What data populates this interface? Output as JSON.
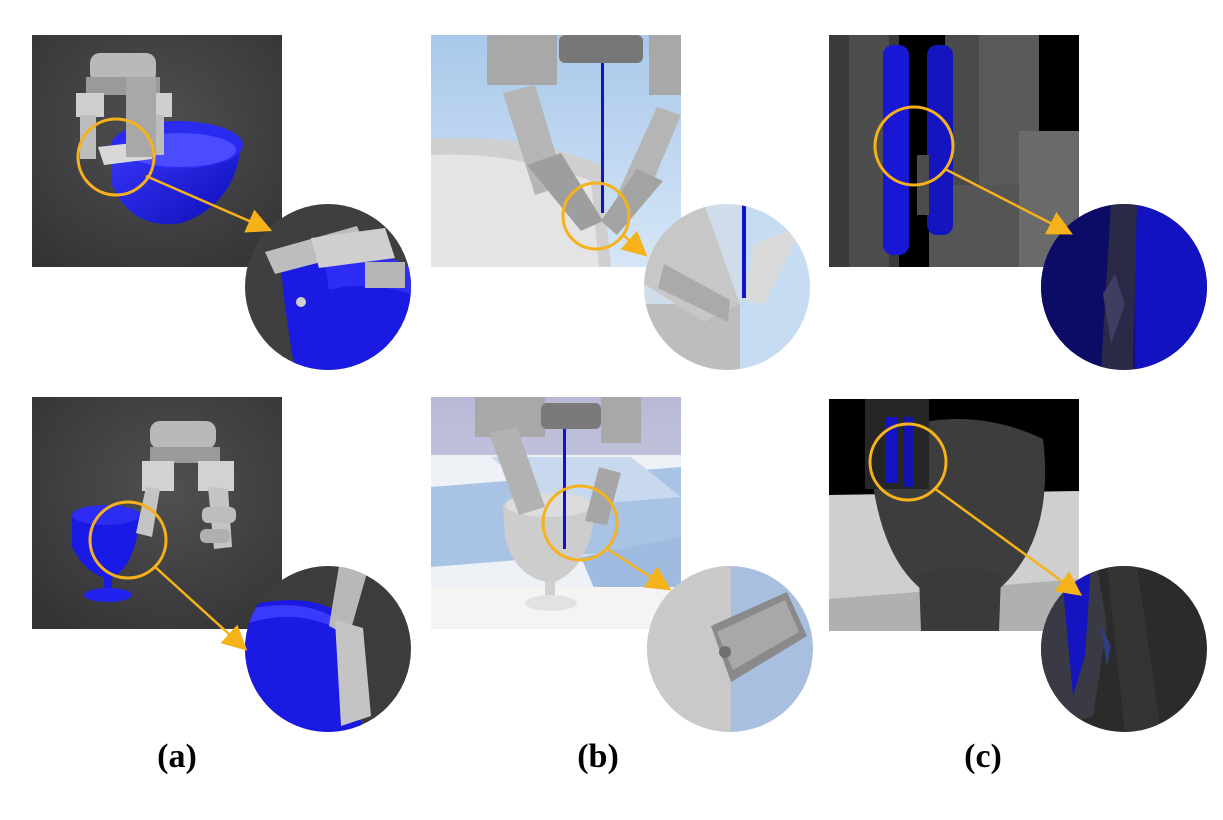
{
  "labels": {
    "a": "(a)",
    "b": "(b)",
    "c": "(c)"
  },
  "colors": {
    "highlight_ring": "#f5b21b",
    "object_blue": "#1a1adf",
    "dark_background": "#3c3c3e",
    "gripper_gray": "#c9c9c9",
    "sky_blue": "#b9d6f2"
  },
  "icons": [
    "magnifier-ring",
    "callout-arrow"
  ]
}
